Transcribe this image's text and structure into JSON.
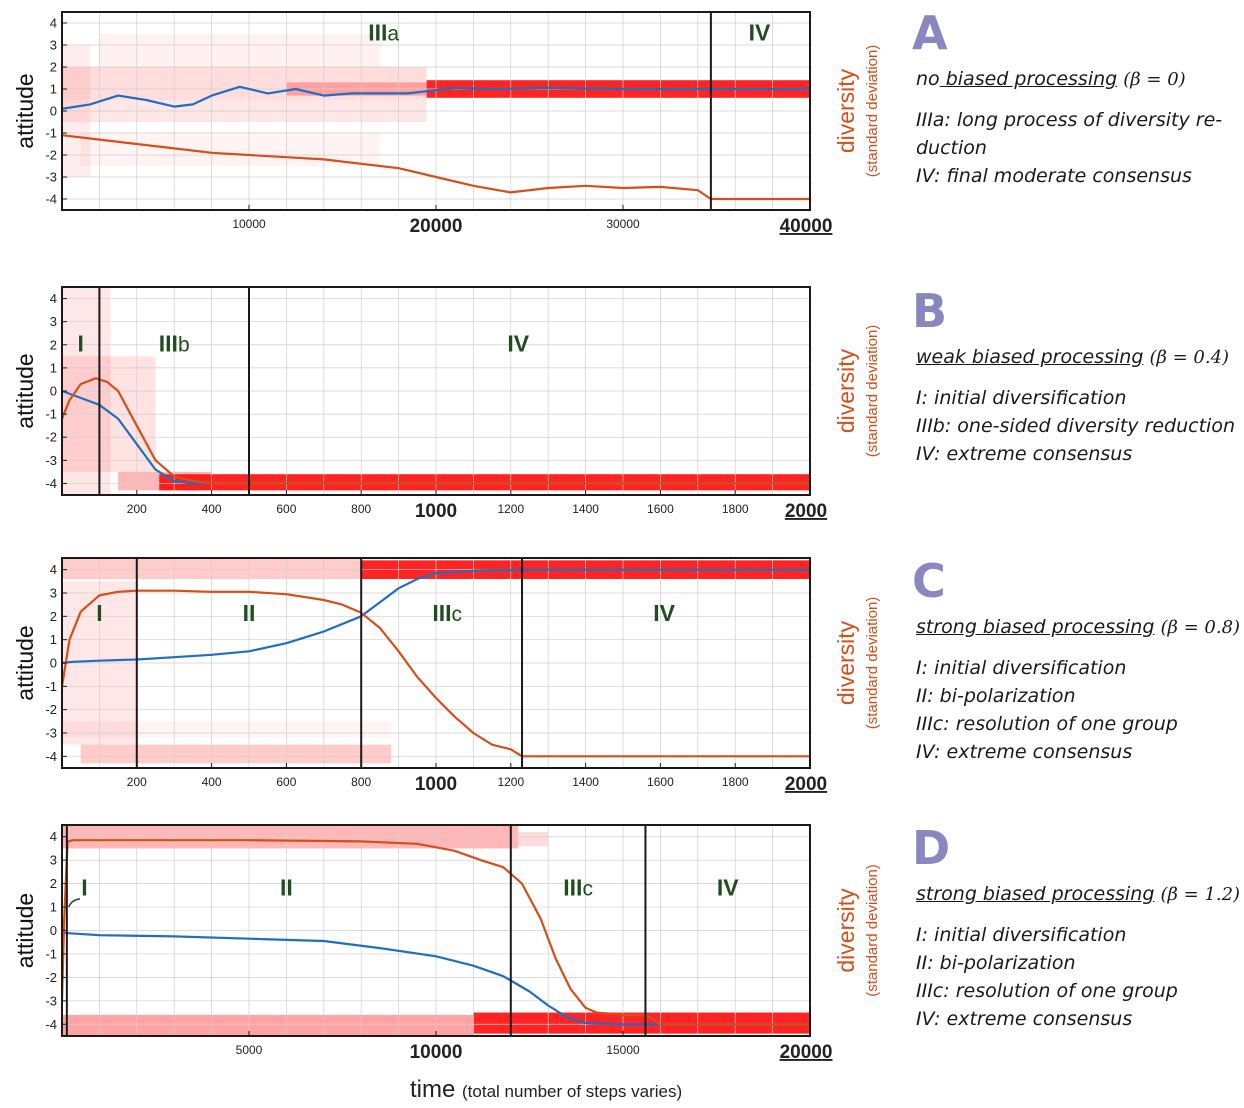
{
  "x_axis_title": "time",
  "x_axis_note": "(total number of steps varies)",
  "y_left_label": "attitude",
  "y_right_label": "diversity",
  "y_right_sublabel": "(standard deviation)",
  "colors": {
    "attitude_mean": "#1f6fc0",
    "diversity": "#d4501a",
    "heat": "#ff1010",
    "phase_label": "#1f4d1f",
    "panel_letter": "#8a86bf"
  },
  "chart_data": [
    {
      "panel": "A",
      "type": "line",
      "heatmap_background": true,
      "xlim": [
        0,
        40000
      ],
      "ylim": [
        -4.5,
        4.5
      ],
      "xticks": [
        10000,
        20000,
        30000,
        40000
      ],
      "xtick_labels": [
        "10000",
        "20000",
        "30000",
        "40000"
      ],
      "xtick_bold": [
        false,
        true,
        false,
        true
      ],
      "xtick_underline": [
        false,
        false,
        false,
        true
      ],
      "yticks": [
        4,
        3,
        2,
        1,
        0,
        -1,
        -2,
        -3,
        -4
      ],
      "phase_boundaries": [
        34700
      ],
      "phases": [
        {
          "label": "III",
          "sub": "a",
          "x": 17200,
          "y": 3.2
        },
        {
          "label": "IV",
          "sub": "",
          "x": 37300,
          "y": 3.2
        }
      ],
      "series": [
        {
          "key": "attitude",
          "x": [
            0,
            1500,
            3000,
            4500,
            6000,
            7000,
            8000,
            9500,
            11000,
            12500,
            14000,
            15500,
            17000,
            18500,
            19500,
            21000,
            23000,
            26000,
            30000,
            34700,
            37000,
            40000
          ],
          "y": [
            0.1,
            0.3,
            0.7,
            0.5,
            0.2,
            0.3,
            0.7,
            1.1,
            0.8,
            1.0,
            0.7,
            0.8,
            0.8,
            0.8,
            0.9,
            1.05,
            1.0,
            1.05,
            1.0,
            1.0,
            1.0,
            1.0
          ]
        },
        {
          "key": "diversity",
          "x": [
            0,
            2000,
            4000,
            6000,
            8000,
            10000,
            12000,
            14000,
            16000,
            18000,
            20000,
            22000,
            24000,
            26000,
            28000,
            30000,
            32000,
            34000,
            34700,
            35000,
            40000
          ],
          "y": [
            -1.1,
            -1.3,
            -1.5,
            -1.7,
            -1.9,
            -2.0,
            -2.1,
            -2.2,
            -2.4,
            -2.6,
            -3.0,
            -3.4,
            -3.7,
            -3.5,
            -3.4,
            -3.5,
            -3.45,
            -3.6,
            -4.0,
            -4.0,
            -4.0
          ]
        }
      ],
      "heat_bands": [
        {
          "x0": 0,
          "x1": 1500,
          "y0": -3.0,
          "y1": 3.0,
          "a": 0.08
        },
        {
          "x0": 0,
          "x1": 19500,
          "y0": 0.5,
          "y1": 2.0,
          "a": 0.14
        },
        {
          "x0": 0,
          "x1": 19500,
          "y0": -0.5,
          "y1": 0.5,
          "a": 0.1
        },
        {
          "x0": 2000,
          "x1": 17000,
          "y0": 2.0,
          "y1": 3.5,
          "a": 0.06
        },
        {
          "x0": 1000,
          "x1": 17000,
          "y0": -2.5,
          "y1": -1.0,
          "a": 0.05
        },
        {
          "x0": 19500,
          "x1": 40000,
          "y0": 0.6,
          "y1": 1.4,
          "a": 0.92
        },
        {
          "x0": 12000,
          "x1": 19500,
          "y0": 0.7,
          "y1": 1.3,
          "a": 0.3
        }
      ],
      "letter": "A",
      "title_prefix": "no",
      "title_main": " biased processing",
      "title_underline_whole": false,
      "beta": "(β = 0)",
      "descriptions": [
        "IIIa: long process of diversity re-",
        "duction",
        "IV: final moderate consensus"
      ]
    },
    {
      "panel": "B",
      "type": "line",
      "heatmap_background": true,
      "xlim": [
        0,
        2000
      ],
      "ylim": [
        -4.5,
        4.5
      ],
      "xticks": [
        200,
        400,
        600,
        800,
        1000,
        1200,
        1400,
        1600,
        1800,
        2000
      ],
      "xtick_labels": [
        "200",
        "400",
        "600",
        "800",
        "1000",
        "1200",
        "1400",
        "1600",
        "1800",
        "2000"
      ],
      "xtick_bold": [
        false,
        false,
        false,
        false,
        true,
        false,
        false,
        false,
        false,
        true
      ],
      "xtick_underline": [
        false,
        false,
        false,
        false,
        false,
        false,
        false,
        false,
        false,
        true
      ],
      "yticks": [
        4,
        3,
        2,
        1,
        0,
        -1,
        -2,
        -3,
        -4
      ],
      "phase_boundaries": [
        100,
        500
      ],
      "phases": [
        {
          "label": "I",
          "sub": "",
          "x": 50,
          "y": 1.7
        },
        {
          "label": "III",
          "sub": "b",
          "x": 300,
          "y": 1.7
        },
        {
          "label": "IV",
          "sub": "",
          "x": 1220,
          "y": 1.7
        }
      ],
      "series": [
        {
          "key": "attitude",
          "x": [
            0,
            50,
            100,
            150,
            200,
            250,
            300,
            350,
            400,
            500,
            2000
          ],
          "y": [
            0.0,
            -0.3,
            -0.6,
            -1.2,
            -2.3,
            -3.4,
            -3.9,
            -4.0,
            -4.0,
            -4.0,
            -4.0
          ]
        },
        {
          "key": "diversity",
          "x": [
            0,
            20,
            50,
            90,
            120,
            150,
            200,
            250,
            300,
            350,
            400,
            500,
            2000
          ],
          "y": [
            -1.2,
            -0.4,
            0.3,
            0.55,
            0.4,
            0.0,
            -1.5,
            -3.0,
            -3.7,
            -3.9,
            -4.0,
            -4.0,
            -4.0
          ]
        }
      ],
      "heat_bands": [
        {
          "x0": 0,
          "x1": 130,
          "y0": -4.5,
          "y1": 4.5,
          "a": 0.1
        },
        {
          "x0": 0,
          "x1": 250,
          "y0": -3.5,
          "y1": 1.5,
          "a": 0.12
        },
        {
          "x0": 150,
          "x1": 400,
          "y0": -4.3,
          "y1": -3.5,
          "a": 0.3
        },
        {
          "x0": 260,
          "x1": 2000,
          "y0": -4.3,
          "y1": -3.6,
          "a": 0.92
        }
      ],
      "letter": "B",
      "title_prefix": "",
      "title_main": "weak biased processing",
      "title_underline_whole": true,
      "beta": "(β = 0.4)",
      "descriptions": [
        "I: initial diversification",
        "IIIb: one-sided diversity reduction",
        "IV: extreme consensus"
      ]
    },
    {
      "panel": "C",
      "type": "line",
      "heatmap_background": true,
      "xlim": [
        0,
        2000
      ],
      "ylim": [
        -4.5,
        4.5
      ],
      "xticks": [
        200,
        400,
        600,
        800,
        1000,
        1200,
        1400,
        1600,
        1800,
        2000
      ],
      "xtick_labels": [
        "200",
        "400",
        "600",
        "800",
        "1000",
        "1200",
        "1400",
        "1600",
        "1800",
        "2000"
      ],
      "xtick_bold": [
        false,
        false,
        false,
        false,
        true,
        false,
        false,
        false,
        false,
        true
      ],
      "xtick_underline": [
        false,
        false,
        false,
        false,
        false,
        false,
        false,
        false,
        false,
        true
      ],
      "yticks": [
        4,
        3,
        2,
        1,
        0,
        -1,
        -2,
        -3,
        -4
      ],
      "phase_boundaries": [
        200,
        800,
        1230
      ],
      "phases": [
        {
          "label": "I",
          "sub": "",
          "x": 100,
          "y": 1.8
        },
        {
          "label": "II",
          "sub": "",
          "x": 500,
          "y": 1.8
        },
        {
          "label": "III",
          "sub": "c",
          "x": 1030,
          "y": 1.8
        },
        {
          "label": "IV",
          "sub": "",
          "x": 1610,
          "y": 1.8
        }
      ],
      "series": [
        {
          "key": "attitude",
          "x": [
            0,
            30,
            100,
            200,
            300,
            400,
            500,
            600,
            700,
            800,
            850,
            900,
            950,
            1000,
            1100,
            1230,
            2000
          ],
          "y": [
            0.0,
            0.05,
            0.1,
            0.15,
            0.25,
            0.35,
            0.5,
            0.85,
            1.35,
            2.0,
            2.6,
            3.2,
            3.6,
            3.85,
            3.95,
            4.0,
            4.0
          ]
        },
        {
          "key": "diversity",
          "x": [
            0,
            20,
            50,
            100,
            150,
            200,
            300,
            400,
            500,
            600,
            700,
            750,
            800,
            850,
            900,
            950,
            1000,
            1050,
            1100,
            1150,
            1200,
            1230,
            2000
          ],
          "y": [
            -1.0,
            1.0,
            2.2,
            2.9,
            3.05,
            3.1,
            3.1,
            3.05,
            3.05,
            2.95,
            2.7,
            2.5,
            2.15,
            1.5,
            0.5,
            -0.6,
            -1.5,
            -2.3,
            -3.0,
            -3.5,
            -3.7,
            -4.0,
            -4.0
          ]
        }
      ],
      "heat_bands": [
        {
          "x0": 0,
          "x1": 800,
          "y0": 3.6,
          "y1": 4.5,
          "a": 0.22
        },
        {
          "x0": 800,
          "x1": 2000,
          "y0": 3.6,
          "y1": 4.4,
          "a": 0.92
        },
        {
          "x0": 0,
          "x1": 200,
          "y0": -3.5,
          "y1": 3.5,
          "a": 0.1
        },
        {
          "x0": 0,
          "x1": 880,
          "y0": -3.2,
          "y1": -2.5,
          "a": 0.05
        },
        {
          "x0": 50,
          "x1": 880,
          "y0": -4.3,
          "y1": -3.5,
          "a": 0.22
        }
      ],
      "letter": "C",
      "title_prefix": "",
      "title_main": "strong biased processing",
      "title_underline_whole": true,
      "beta": "(β = 0.8)",
      "descriptions": [
        "I: initial diversification",
        "II: bi-polarization",
        "IIIc: resolution of one group",
        "IV: extreme consensus"
      ]
    },
    {
      "panel": "D",
      "type": "line",
      "heatmap_background": true,
      "xlim": [
        0,
        20000
      ],
      "ylim": [
        -4.5,
        4.5
      ],
      "xticks": [
        5000,
        10000,
        15000,
        20000
      ],
      "xtick_labels": [
        "5000",
        "10000",
        "15000",
        "20000"
      ],
      "xtick_bold": [
        false,
        true,
        false,
        true
      ],
      "xtick_underline": [
        false,
        false,
        false,
        true
      ],
      "yticks": [
        4,
        3,
        2,
        1,
        0,
        -1,
        -2,
        -3,
        -4
      ],
      "phase_boundaries": [
        130,
        12000,
        15600
      ],
      "phases": [
        {
          "label": "I",
          "sub": "",
          "x": 600,
          "y": 1.5
        },
        {
          "label": "II",
          "sub": "",
          "x": 6000,
          "y": 1.5
        },
        {
          "label": "III",
          "sub": "c",
          "x": 13800,
          "y": 1.5
        },
        {
          "label": "IV",
          "sub": "",
          "x": 17800,
          "y": 1.5
        }
      ],
      "series": [
        {
          "key": "attitude",
          "x": [
            0,
            1000,
            3000,
            5000,
            7000,
            8500,
            10000,
            11000,
            11800,
            12500,
            13000,
            13500,
            14000,
            15000,
            15600,
            20000
          ],
          "y": [
            -0.1,
            -0.2,
            -0.25,
            -0.35,
            -0.45,
            -0.75,
            -1.1,
            -1.5,
            -1.95,
            -2.6,
            -3.2,
            -3.7,
            -3.95,
            -4.0,
            -4.0,
            -4.0
          ]
        },
        {
          "key": "diversity",
          "x": [
            0,
            60,
            150,
            300,
            2000,
            5000,
            8000,
            9500,
            10500,
            11200,
            11800,
            12300,
            12800,
            13200,
            13600,
            14000,
            14300,
            14700,
            15000,
            15600,
            16000,
            20000
          ],
          "y": [
            -3.0,
            0.5,
            3.8,
            3.85,
            3.85,
            3.85,
            3.8,
            3.7,
            3.4,
            3.0,
            2.7,
            2.0,
            0.5,
            -1.2,
            -2.5,
            -3.3,
            -3.5,
            -3.55,
            -3.6,
            -3.6,
            -4.0,
            -4.0
          ]
        }
      ],
      "heat_bands": [
        {
          "x0": 0,
          "x1": 12200,
          "y0": 3.5,
          "y1": 4.5,
          "a": 0.3
        },
        {
          "x0": 12200,
          "x1": 13000,
          "y0": 3.6,
          "y1": 4.2,
          "a": 0.15
        },
        {
          "x0": 0,
          "x1": 11000,
          "y0": -4.5,
          "y1": -3.6,
          "a": 0.38
        },
        {
          "x0": 11000,
          "x1": 20000,
          "y0": -4.4,
          "y1": -3.5,
          "a": 0.92
        }
      ],
      "letter": "D",
      "title_prefix": "",
      "title_main": "strong biased processing",
      "title_underline_whole": true,
      "beta": "(β = 1.2)",
      "descriptions": [
        "I: initial diversification",
        "II: bi-polarization",
        "IIIc: resolution of one group",
        "IV: extreme consensus"
      ]
    }
  ]
}
